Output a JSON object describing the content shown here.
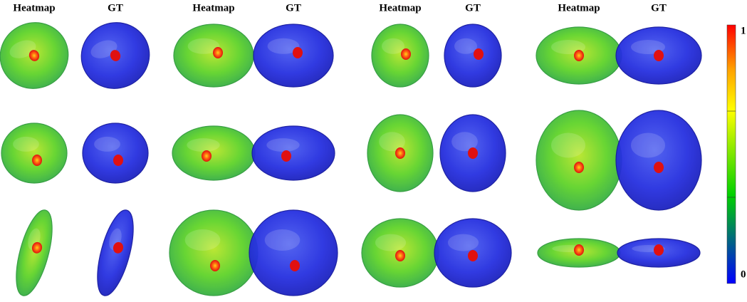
{
  "headers": [
    "Heatmap",
    "GT",
    "Heatmap",
    "GT",
    "Heatmap",
    "GT",
    "Heatmap",
    "GT"
  ],
  "colorbar": {
    "max": 1,
    "min": 0
  }
}
